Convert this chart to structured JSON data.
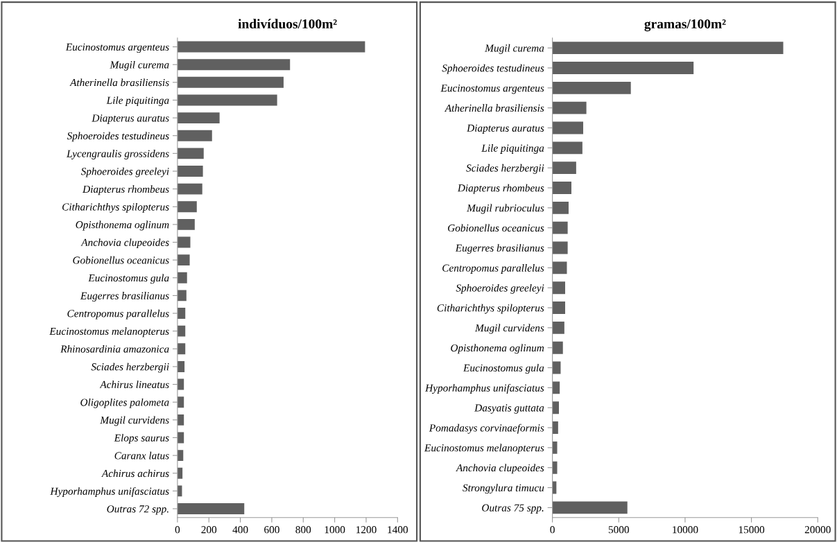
{
  "chart_data": [
    {
      "type": "bar",
      "orientation": "horizontal",
      "title": "indivíduos/100m²",
      "color": "#606060",
      "grid": false,
      "categories": [
        "Eucinostomus argenteus",
        "Mugil curema",
        "Atherinella brasiliensis",
        "Lile piquitinga",
        "Diapterus auratus",
        "Sphoeroides testudineus",
        "Lycengraulis grossidens",
        "Sphoeroides greeleyi",
        "Diapterus rhombeus",
        "Citharichthys spilopterus",
        "Opisthonema oglinum",
        "Anchovia clupeoides",
        "Gobionellus oceanicus",
        "Eucinostomus gula",
        "Eugerres brasilianus",
        "Centropomus parallelus",
        "Eucinostomus melanopterus",
        "Rhinosardinia amazonica",
        "Sciades herzbergii",
        "Achirus lineatus",
        "Oligoplites palometa",
        "Mugil curvidens",
        "Elops saurus",
        "Caranx latus",
        "Achirus achirus",
        "Hyporhamphus unifasciatus",
        "Outras 72 spp."
      ],
      "values": [
        1193,
        716,
        675,
        634,
        268,
        220,
        167,
        162,
        158,
        123,
        110,
        82,
        78,
        61,
        57,
        50,
        50,
        50,
        45,
        41,
        41,
        41,
        41,
        37,
        32,
        29,
        425
      ],
      "xlim": [
        0,
        1400
      ],
      "xticks": [
        0,
        200,
        400,
        600,
        800,
        1000,
        1200,
        1400
      ]
    },
    {
      "type": "bar",
      "orientation": "horizontal",
      "title": "gramas/100m²",
      "color": "#606060",
      "grid": false,
      "categories": [
        "Mugil curema",
        "Sphoeroides testudineus",
        "Eucinostomus argenteus",
        "Atherinella brasiliensis",
        "Diapterus auratus",
        "Lile piquitinga",
        "Sciades herzbergii",
        "Diapterus rhombeus",
        "Mugil rubrioculus",
        "Gobionellus oceanicus",
        "Eugerres brasilianus",
        "Centropomus parallelus",
        "Sphoeroides greeleyi",
        "Citharichthys spilopterus",
        "Mugil curvidens",
        "Opisthonema oglinum",
        "Eucinostomus gula",
        "Hyporhamphus unifasciatus",
        "Dasyatis guttata",
        "Pomadasys corvinaeformis",
        "Eucinostomus melanopterus",
        "Anchovia clupeoides",
        "Strongylura timucu",
        "Outras 75 spp."
      ],
      "values": [
        17400,
        10640,
        5910,
        2560,
        2320,
        2260,
        1790,
        1430,
        1220,
        1150,
        1150,
        1090,
        960,
        960,
        900,
        790,
        620,
        550,
        490,
        430,
        360,
        360,
        300,
        5650
      ],
      "xlim": [
        0,
        20000
      ],
      "xticks": [
        0,
        5000,
        10000,
        15000,
        20000
      ]
    }
  ]
}
